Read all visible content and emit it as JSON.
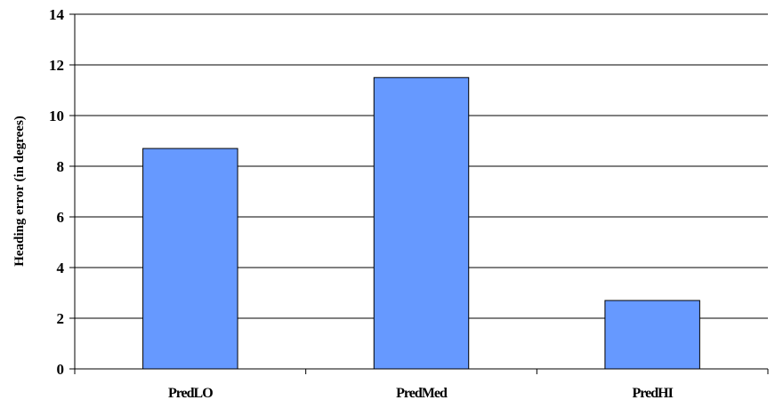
{
  "chart_data": {
    "type": "bar",
    "categories": [
      "PredLO",
      "PredMed",
      "PredHI"
    ],
    "values": [
      8.7,
      11.5,
      2.7
    ],
    "title": "",
    "xlabel": "",
    "ylabel": "Heading error (in degrees)",
    "ylim": [
      0,
      14
    ],
    "yticks": [
      0,
      2,
      4,
      6,
      8,
      10,
      12,
      14
    ],
    "grid": true,
    "legend": "none",
    "bar_color": "#6699ff",
    "bar_stroke": "#000000"
  }
}
